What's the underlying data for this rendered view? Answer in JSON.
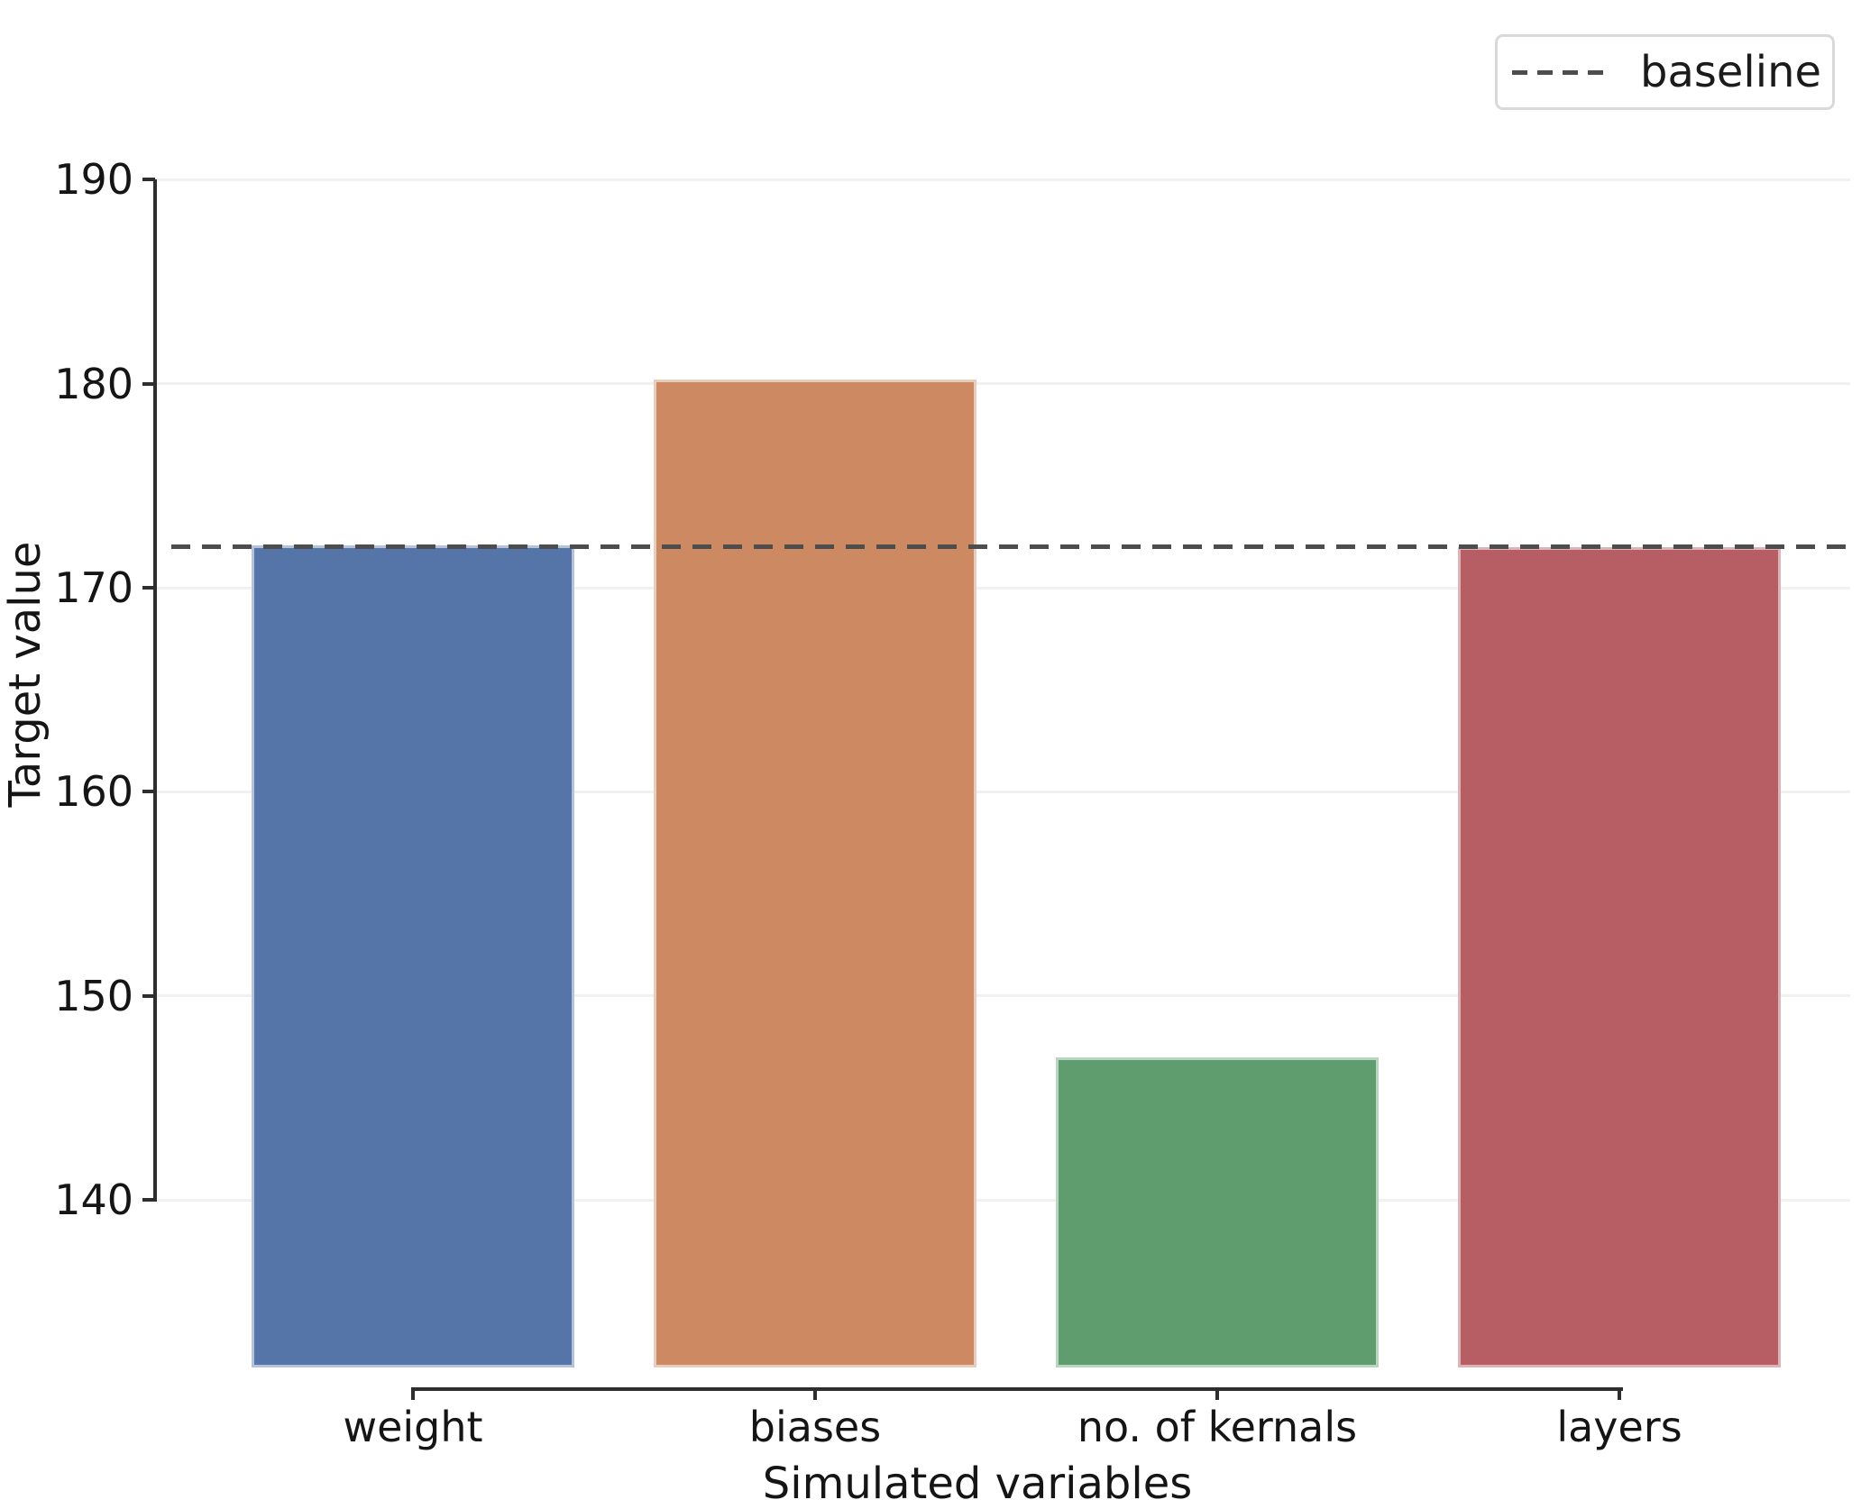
{
  "figure": {
    "background": "#ffffff"
  },
  "axes": {
    "xlabel": "Simulated variables",
    "ylabel": "Target value"
  },
  "legend": {
    "label": "baseline",
    "line_style": "dashed",
    "line_color": "#4d4d4d",
    "position": "upper right"
  },
  "chart_data": {
    "type": "bar",
    "title": "",
    "xlabel": "Simulated variables",
    "ylabel": "Target value",
    "categories": [
      "weight",
      "biases",
      "no. of kernals",
      "layers"
    ],
    "values": [
      172.1,
      180.2,
      147.0,
      172.0
    ],
    "baseline": {
      "label": "baseline",
      "value": 172
    },
    "yticks": [
      140,
      150,
      160,
      170,
      180,
      190
    ],
    "ylim": [
      131.8,
      191.6
    ],
    "grid": true,
    "gridline_color": "#f1f1f1",
    "spine_color": "#2e2e2e",
    "baseline_color": "#4d4d4d",
    "bar_colors": [
      "#5574A8",
      "#CC8962",
      "#5F9D6E",
      "#B65E63"
    ],
    "bar_edge_colors": [
      "#b6c2da",
      "#e8cdbc",
      "#b7d5bf",
      "#ddb3b6"
    ],
    "legend_position": "upper right"
  }
}
